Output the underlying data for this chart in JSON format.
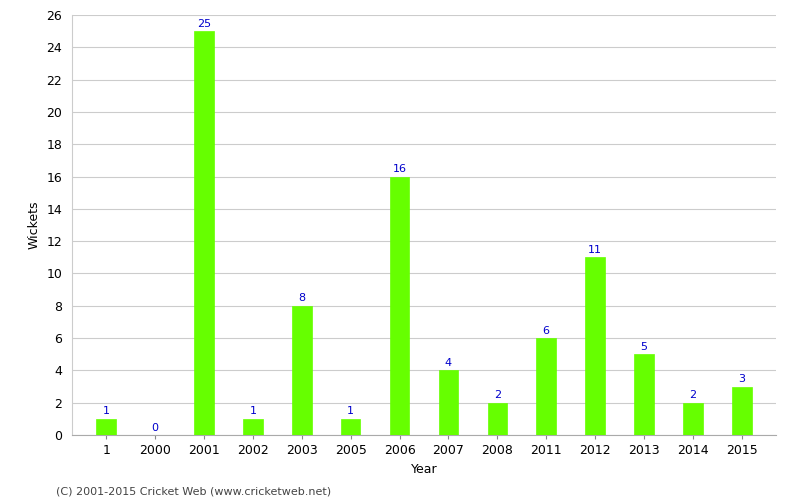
{
  "categories": [
    "1",
    "2000",
    "2001",
    "2002",
    "2003",
    "2005",
    "2006",
    "2007",
    "2008",
    "2011",
    "2012",
    "2013",
    "2014",
    "2015"
  ],
  "values": [
    1,
    0,
    25,
    1,
    8,
    1,
    16,
    4,
    2,
    6,
    11,
    5,
    2,
    3
  ],
  "bar_color": "#66ff00",
  "label_color": "#0000cc",
  "xlabel": "Year",
  "ylabel": "Wickets",
  "ylim": [
    0,
    26
  ],
  "yticks": [
    0,
    2,
    4,
    6,
    8,
    10,
    12,
    14,
    16,
    18,
    20,
    22,
    24,
    26
  ],
  "background_color": "#ffffff",
  "grid_color": "#cccccc",
  "footer": "(C) 2001-2015 Cricket Web (www.cricketweb.net)",
  "label_fontsize": 8,
  "axis_fontsize": 9,
  "bar_width": 0.4
}
